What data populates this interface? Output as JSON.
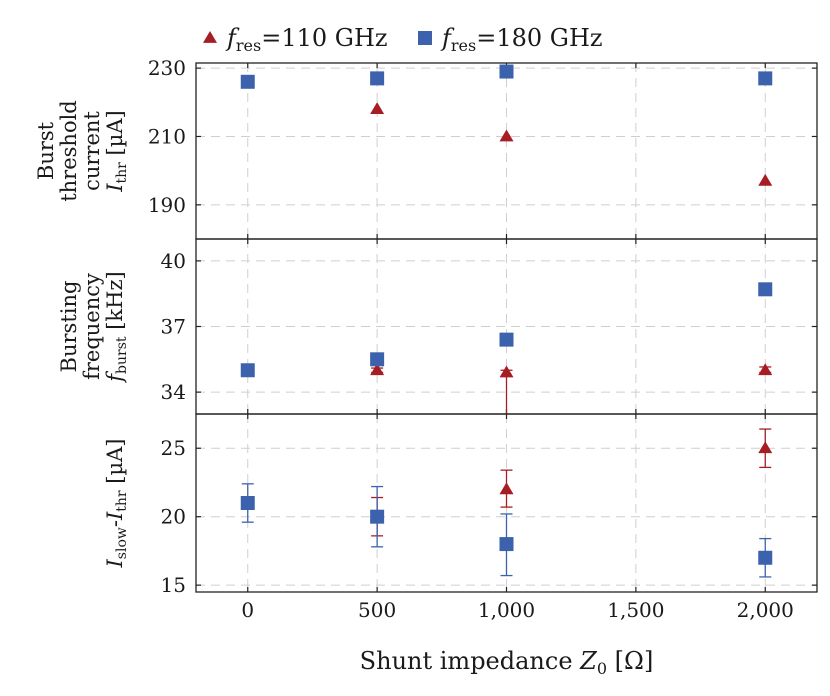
{
  "chart_data": {
    "type": "scatter",
    "legend": {
      "placement": "top-center",
      "entries": [
        {
          "symbol": "f",
          "subscript": "res",
          "value": "=110 GHz",
          "marker": "triangle",
          "color": "#a61e24"
        },
        {
          "symbol": "f",
          "subscript": "res",
          "value": "=180 GHz",
          "marker": "square",
          "color": "#3c62ad"
        }
      ]
    },
    "x": {
      "label_prefix": "Shunt impedance ",
      "label_symbol": "Z",
      "label_subscript": "0",
      "label_unit": " [Ω]",
      "lim": [
        -200,
        2200
      ],
      "ticks": [
        0,
        500,
        1000,
        1500,
        2000
      ],
      "tick_labels": [
        "0",
        "500",
        "1,000",
        "1,500",
        "2,000"
      ]
    },
    "panels": [
      {
        "ylabel_lines": [
          "Burst",
          "threshold",
          "current"
        ],
        "ylabel_symbol": "I",
        "ylabel_subscript": "thr",
        "ylabel_unit": " [µA]",
        "ylim": [
          180,
          231.5
        ],
        "yticks": [
          190,
          210,
          230
        ],
        "series": [
          {
            "name": "f_res=110 GHz",
            "marker": "triangle",
            "color": "#a61e24",
            "x": [
              500,
              1000,
              2000
            ],
            "y": [
              218,
              210,
              197
            ]
          },
          {
            "name": "f_res=180 GHz",
            "marker": "square",
            "color": "#3c62ad",
            "x": [
              0,
              500,
              1000,
              2000
            ],
            "y": [
              226,
              227,
              229,
              227
            ]
          }
        ]
      },
      {
        "ylabel_lines": [
          "Bursting",
          "frequency"
        ],
        "ylabel_symbol": "f",
        "ylabel_subscript": "burst",
        "ylabel_unit": " [kHz]",
        "ylim": [
          33.0,
          41.0
        ],
        "yticks": [
          34,
          37,
          40
        ],
        "series": [
          {
            "name": "f_res=110 GHz",
            "marker": "triangle",
            "color": "#a61e24",
            "x": [
              500,
              1000,
              2000
            ],
            "y": [
              35.0,
              34.9,
              35.0
            ],
            "err_low": [
              0.1,
              2.0,
              0.1
            ],
            "err_high": [
              0.1,
              0.1,
              0.15
            ]
          },
          {
            "name": "f_res=180 GHz",
            "marker": "square",
            "color": "#3c62ad",
            "x": [
              0,
              500,
              1000,
              2000
            ],
            "y": [
              35.0,
              35.5,
              36.4,
              38.7
            ]
          }
        ]
      },
      {
        "ylabel_lines": [],
        "ylabel_symbol": "I",
        "ylabel_subscript": "slow",
        "ylabel_mid": "-",
        "ylabel_symbol2": "I",
        "ylabel_subscript2": "thr",
        "ylabel_unit": " [µA]",
        "ylim": [
          14.5,
          27.5
        ],
        "yticks": [
          15,
          20,
          25
        ],
        "series": [
          {
            "name": "f_res=110 GHz",
            "marker": "triangle",
            "color": "#a61e24",
            "x": [
              500,
              1000,
              2000
            ],
            "y": [
              20,
              22,
              25
            ],
            "err_low": [
              1.4,
              1.3,
              1.4
            ],
            "err_high": [
              1.4,
              1.4,
              1.4
            ]
          },
          {
            "name": "f_res=180 GHz",
            "marker": "square",
            "color": "#3c62ad",
            "x": [
              0,
              500,
              1000,
              2000
            ],
            "y": [
              21,
              20,
              18,
              17
            ],
            "err_low": [
              1.4,
              2.2,
              2.3,
              1.4
            ],
            "err_high": [
              1.4,
              2.2,
              2.2,
              1.4
            ]
          }
        ]
      }
    ]
  }
}
